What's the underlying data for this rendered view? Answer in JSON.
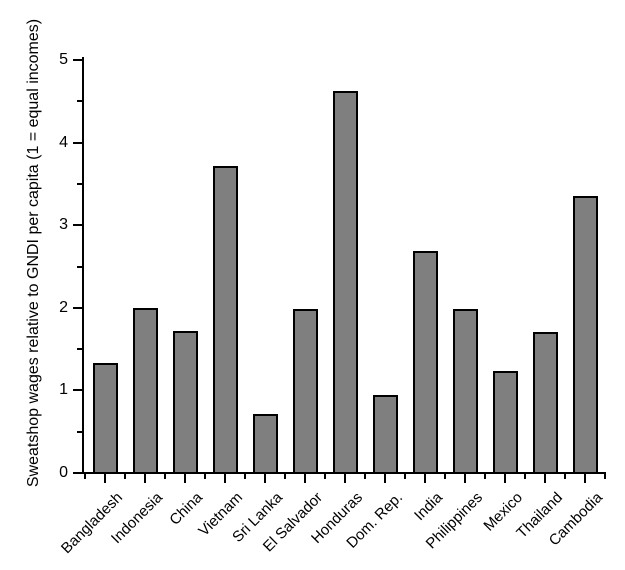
{
  "chart_data": {
    "type": "bar",
    "title": "",
    "ylabel": "Sweatshop wages relative to GNDI per capita (1 = equal incomes)",
    "xlabel": "",
    "categories": [
      "Bangladesh",
      "Indonesia",
      "China",
      "Vietnam",
      "Sri Lanka",
      "El Salvador",
      "Honduras",
      "Dom. Rep.",
      "India",
      "Philippines",
      "Mexico",
      "Thailand",
      "Cambodia"
    ],
    "values": [
      1.33,
      2.0,
      1.72,
      3.72,
      0.71,
      1.98,
      4.62,
      0.94,
      2.69,
      1.98,
      1.24,
      1.71,
      3.35
    ],
    "ylim": [
      0,
      5
    ],
    "ytick_labels": [
      "0",
      "1",
      "2",
      "3",
      "4",
      "5"
    ],
    "ytick_major_step": 1,
    "ytick_minor_step": 0.5,
    "grid": "off",
    "legend": "none",
    "bar_fill_color": "#7f7f7f",
    "bar_border_color": "#000000",
    "axis_color": "#000000",
    "background_color": "#ffffff"
  }
}
